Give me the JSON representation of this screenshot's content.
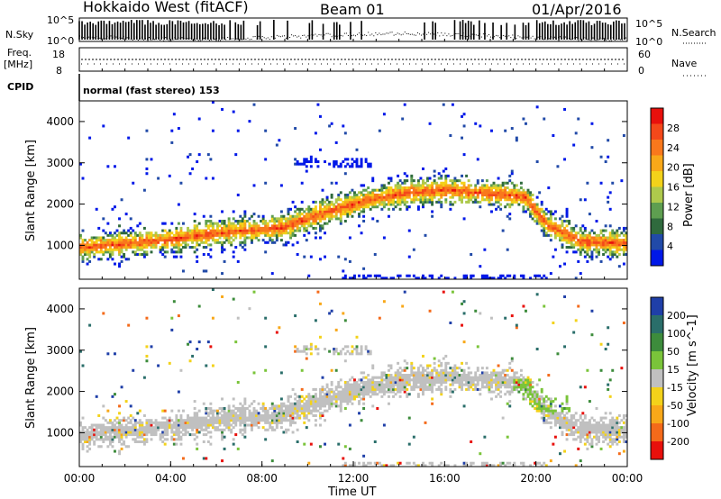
{
  "header": {
    "site": "Hokkaido West (fitACF)",
    "beam": "Beam 01",
    "date": "01/Apr/2016"
  },
  "panels": {
    "nsky": {
      "label": "N.Sky",
      "ticks": [
        "10^5",
        "10^0"
      ],
      "right_label": "N.Search",
      "right_ticks": [
        "10^5",
        "10^0"
      ]
    },
    "freq": {
      "label_1": "Freq.",
      "label_2": "[MHz]",
      "ticks": [
        "18",
        "8"
      ],
      "right_label": "Nave",
      "right_ticks": [
        "60",
        "0"
      ]
    },
    "cpid": {
      "label": "CPID",
      "mode_text": "normal (fast stereo) 153"
    }
  },
  "chart_data": [
    {
      "type": "heatmap",
      "name": "power",
      "ylabel": "Slant Range [km]",
      "ylim": [
        180,
        4500
      ],
      "yticks": [
        "1000",
        "2000",
        "3000",
        "4000"
      ],
      "xlabel": "Time UT",
      "xlim_hours": [
        0,
        24
      ],
      "colorbar": {
        "label": "Power [dB]",
        "ticks": [
          "28",
          "24",
          "20",
          "16",
          "12",
          "8",
          "4"
        ],
        "colors": [
          "#e8100c",
          "#f4481a",
          "#f9781c",
          "#f8a819",
          "#f3d21a",
          "#aec94c",
          "#5e9e50",
          "#2f6a3d",
          "#214aa8",
          "#0018e8"
        ]
      },
      "echo_band": {
        "time_hours": [
          0,
          2,
          4,
          6,
          8,
          9,
          10.5,
          12,
          13,
          14,
          16,
          17,
          19.5,
          20.5,
          22,
          24
        ],
        "center_range_km": [
          950,
          1050,
          1150,
          1300,
          1400,
          1450,
          1750,
          2000,
          2150,
          2250,
          2350,
          2300,
          2200,
          1500,
          1100,
          1050
        ]
      },
      "grid": false
    },
    {
      "type": "heatmap",
      "name": "velocity",
      "ylabel": "Slant Range [km]",
      "ylim": [
        180,
        4500
      ],
      "yticks": [
        "1000",
        "2000",
        "3000",
        "4000"
      ],
      "xlabel": "Time UT",
      "xticks": [
        "00:00",
        "04:00",
        "08:00",
        "12:00",
        "16:00",
        "20:00",
        "00:00"
      ],
      "colorbar": {
        "label": "Velocity [m s^-1]",
        "ticks": [
          "200",
          "100",
          "50",
          "15",
          "-15",
          "-50",
          "-100",
          "-200"
        ],
        "colors": [
          "#1f3fa8",
          "#2a6e6a",
          "#3d8c3c",
          "#7ac43a",
          "#c0c0c0",
          "#f3d21a",
          "#f8a819",
          "#f46a1a",
          "#e8100c"
        ]
      },
      "grid": false
    }
  ],
  "colors": {
    "ground_scatter": "#c0c0c0",
    "frame": "#000000"
  }
}
